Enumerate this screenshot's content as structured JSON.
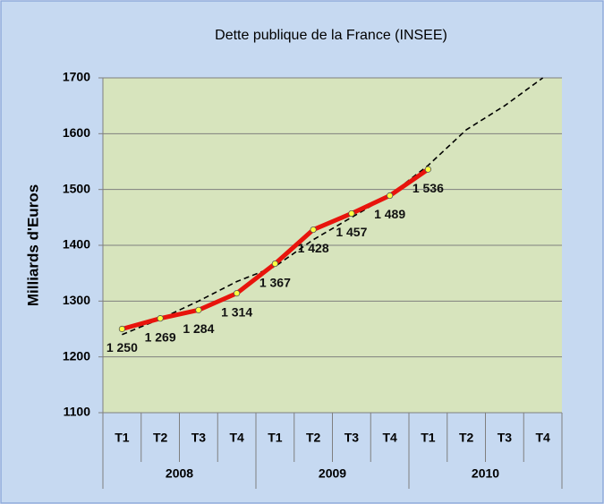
{
  "chart_data": {
    "type": "line",
    "title": "Dette publique de la France (INSEE)",
    "y_label": "Milliards d'Euros",
    "categories": [
      "T1",
      "T2",
      "T3",
      "T4",
      "T1",
      "T2",
      "T3",
      "T4",
      "T1",
      "T2",
      "T3",
      "T4"
    ],
    "years": [
      "2008",
      "2009",
      "2010"
    ],
    "series": [
      {
        "color": "#e8140c",
        "marker": "#ffff40",
        "values": [
          1250,
          1269,
          1284,
          1314,
          1367,
          1428,
          1457,
          1489,
          1536,
          null,
          null,
          null
        ],
        "value_labels": [
          "1 250",
          "1 269",
          "1 284",
          "1 314",
          "1 367",
          "1 428",
          "1 457",
          "1 489",
          "1 536",
          null,
          null,
          null
        ]
      },
      {
        "color": "#000000",
        "dashed": true,
        "values": [
          1240,
          1268,
          1300,
          1335,
          1362,
          1410,
          1450,
          1490,
          1543,
          1607,
          1650,
          1700
        ]
      }
    ],
    "ylim": [
      1100,
      1700
    ],
    "yticks": [
      1100,
      1200,
      1300,
      1400,
      1500,
      1600,
      1700
    ],
    "grid": true
  }
}
